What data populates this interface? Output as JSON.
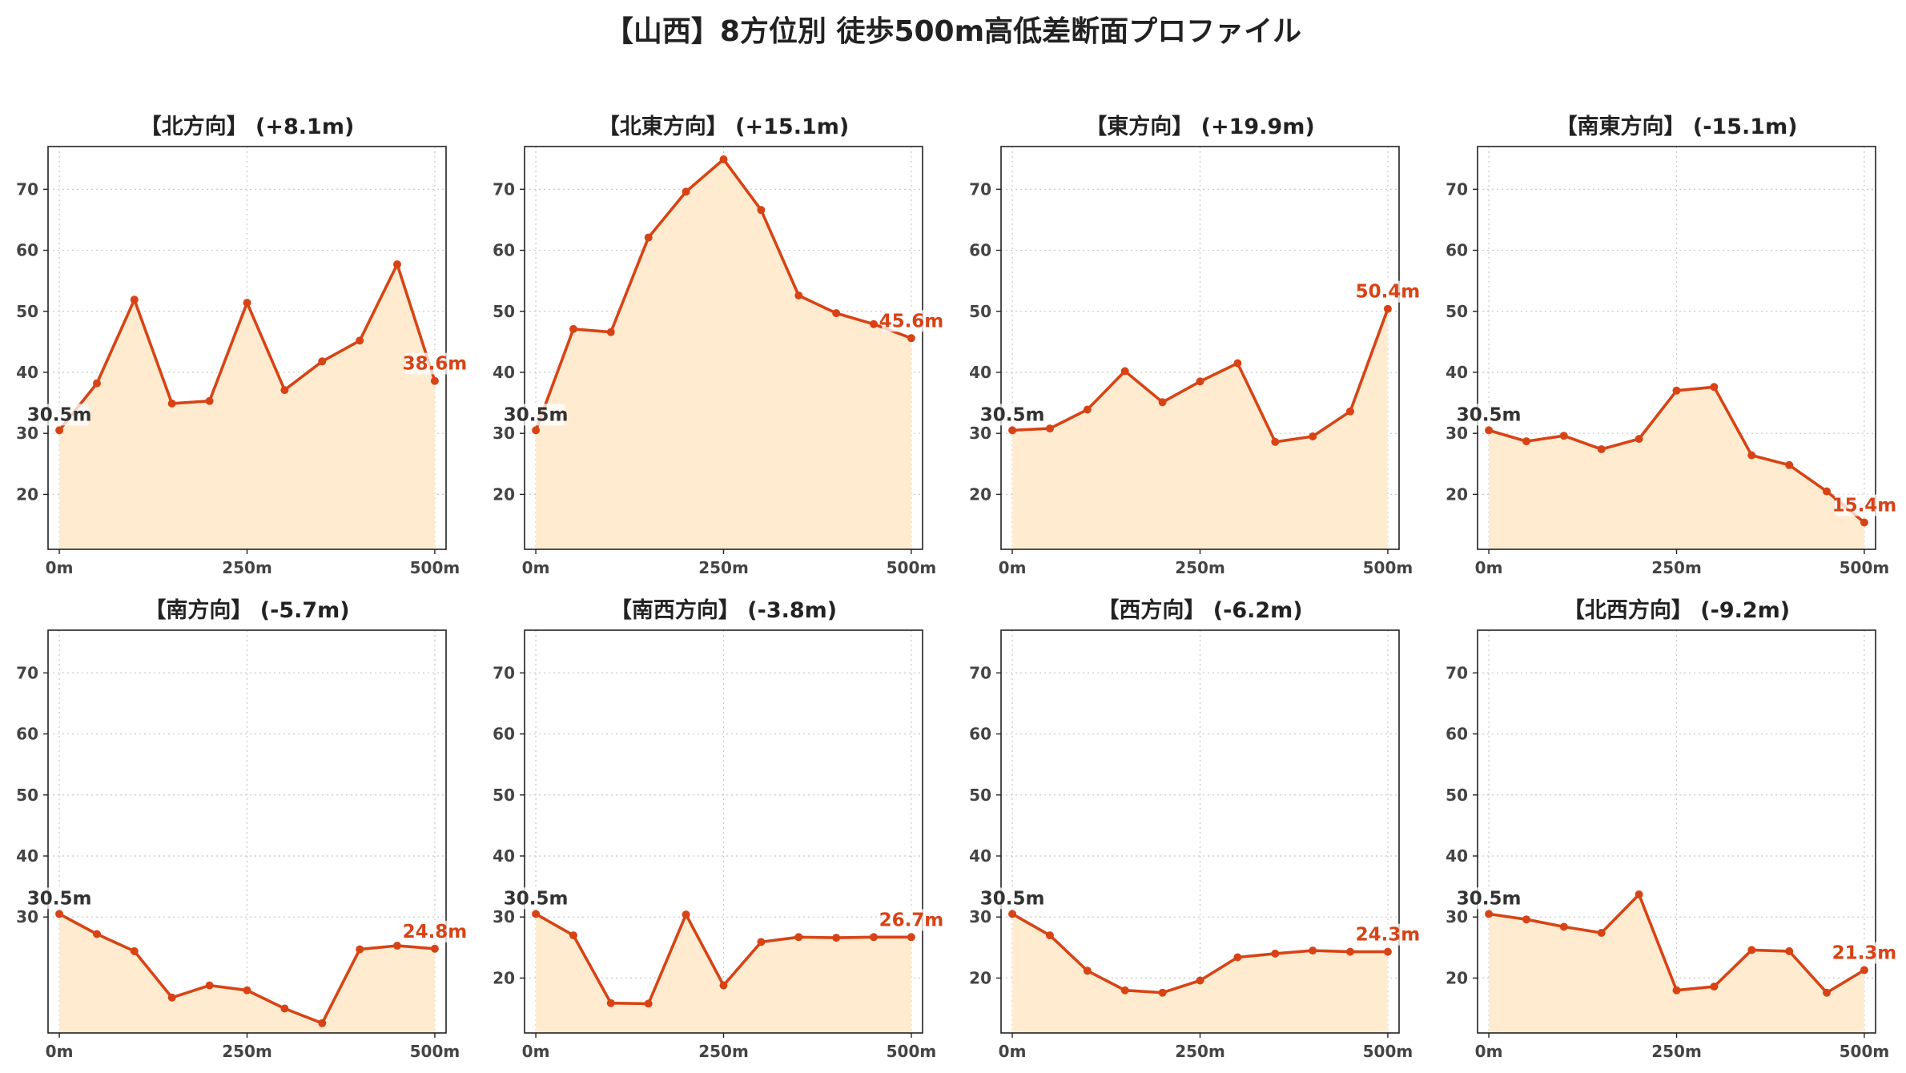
{
  "title": "【山西】8方位別 徒歩500m高低差断面プロファイル",
  "colors": {
    "line": "#d84315",
    "fill": "#ffecd0",
    "grid": "#c8c8c8",
    "start_label": "#333333",
    "end_label": "#d84315"
  },
  "chart_data": [
    {
      "type": "area",
      "title": "【北方向】 (+8.1m)",
      "x": [
        0,
        50,
        100,
        150,
        200,
        250,
        300,
        350,
        400,
        450,
        500
      ],
      "values": [
        30.5,
        38.2,
        51.9,
        34.9,
        35.3,
        51.4,
        37.1,
        41.8,
        45.2,
        57.7,
        38.6
      ],
      "start_label": "30.5m",
      "end_label": "38.6m",
      "xticks": [
        0,
        250,
        500
      ],
      "xtick_labels": [
        "0m",
        "250m",
        "500m"
      ],
      "yticks": [
        20,
        30,
        40,
        50,
        60,
        70
      ],
      "xlim": [
        -15,
        515
      ],
      "ylim": [
        11,
        77
      ],
      "grid": true
    },
    {
      "type": "area",
      "title": "【北東方向】 (+15.1m)",
      "x": [
        0,
        50,
        100,
        150,
        200,
        250,
        300,
        350,
        400,
        450,
        500
      ],
      "values": [
        30.5,
        47.1,
        46.6,
        62.1,
        69.6,
        74.9,
        66.6,
        52.6,
        49.7,
        47.9,
        45.6
      ],
      "start_label": "30.5m",
      "end_label": "45.6m",
      "xticks": [
        0,
        250,
        500
      ],
      "xtick_labels": [
        "0m",
        "250m",
        "500m"
      ],
      "yticks": [
        20,
        30,
        40,
        50,
        60,
        70
      ],
      "xlim": [
        -15,
        515
      ],
      "ylim": [
        11,
        77
      ],
      "grid": true
    },
    {
      "type": "area",
      "title": "【東方向】 (+19.9m)",
      "x": [
        0,
        50,
        100,
        150,
        200,
        250,
        300,
        350,
        400,
        450,
        500
      ],
      "values": [
        30.5,
        30.8,
        33.9,
        40.2,
        35.1,
        38.5,
        41.5,
        28.6,
        29.5,
        33.6,
        50.4
      ],
      "start_label": "30.5m",
      "end_label": "50.4m",
      "xticks": [
        0,
        250,
        500
      ],
      "xtick_labels": [
        "0m",
        "250m",
        "500m"
      ],
      "yticks": [
        20,
        30,
        40,
        50,
        60,
        70
      ],
      "xlim": [
        -15,
        515
      ],
      "ylim": [
        11,
        77
      ],
      "grid": true
    },
    {
      "type": "area",
      "title": "【南東方向】 (-15.1m)",
      "x": [
        0,
        50,
        100,
        150,
        200,
        250,
        300,
        350,
        400,
        450,
        500
      ],
      "values": [
        30.5,
        28.7,
        29.6,
        27.4,
        29.1,
        37.0,
        37.6,
        26.4,
        24.8,
        20.5,
        15.4
      ],
      "start_label": "30.5m",
      "end_label": "15.4m",
      "xticks": [
        0,
        250,
        500
      ],
      "xtick_labels": [
        "0m",
        "250m",
        "500m"
      ],
      "yticks": [
        20,
        30,
        40,
        50,
        60,
        70
      ],
      "xlim": [
        -15,
        515
      ],
      "ylim": [
        11,
        77
      ],
      "grid": true
    },
    {
      "type": "area",
      "title": "【南方向】 (-5.7m)",
      "x": [
        0,
        50,
        100,
        150,
        200,
        250,
        300,
        350,
        400,
        450,
        500
      ],
      "values": [
        30.5,
        27.2,
        24.4,
        16.8,
        18.8,
        18.0,
        15.0,
        12.6,
        24.7,
        25.3,
        24.8
      ],
      "start_label": "30.5m",
      "end_label": "24.8m",
      "xticks": [
        0,
        250,
        500
      ],
      "xtick_labels": [
        "0m",
        "250m",
        "500m"
      ],
      "yticks": [
        30,
        40,
        50,
        60,
        70
      ],
      "xlim": [
        -15,
        515
      ],
      "ylim": [
        11,
        77
      ],
      "grid": true
    },
    {
      "type": "area",
      "title": "【南西方向】 (-3.8m)",
      "x": [
        0,
        50,
        100,
        150,
        200,
        250,
        300,
        350,
        400,
        450,
        500
      ],
      "values": [
        30.5,
        27.0,
        15.9,
        15.8,
        30.4,
        18.8,
        25.9,
        26.7,
        26.6,
        26.7,
        26.7
      ],
      "start_label": "30.5m",
      "end_label": "26.7m",
      "xticks": [
        0,
        250,
        500
      ],
      "xtick_labels": [
        "0m",
        "250m",
        "500m"
      ],
      "yticks": [
        20,
        30,
        40,
        50,
        60,
        70
      ],
      "xlim": [
        -15,
        515
      ],
      "ylim": [
        11,
        77
      ],
      "grid": true
    },
    {
      "type": "area",
      "title": "【西方向】 (-6.2m)",
      "x": [
        0,
        50,
        100,
        150,
        200,
        250,
        300,
        350,
        400,
        450,
        500
      ],
      "values": [
        30.5,
        27.0,
        21.2,
        18.0,
        17.6,
        19.6,
        23.4,
        24.0,
        24.5,
        24.3,
        24.3
      ],
      "start_label": "30.5m",
      "end_label": "24.3m",
      "xticks": [
        0,
        250,
        500
      ],
      "xtick_labels": [
        "0m",
        "250m",
        "500m"
      ],
      "yticks": [
        20,
        30,
        40,
        50,
        60,
        70
      ],
      "xlim": [
        -15,
        515
      ],
      "ylim": [
        11,
        77
      ],
      "grid": true
    },
    {
      "type": "area",
      "title": "【北西方向】 (-9.2m)",
      "x": [
        0,
        50,
        100,
        150,
        200,
        250,
        300,
        350,
        400,
        450,
        500
      ],
      "values": [
        30.5,
        29.6,
        28.4,
        27.4,
        33.7,
        18.0,
        18.6,
        24.6,
        24.4,
        17.6,
        21.3
      ],
      "start_label": "30.5m",
      "end_label": "21.3m",
      "xticks": [
        0,
        250,
        500
      ],
      "xtick_labels": [
        "0m",
        "250m",
        "500m"
      ],
      "yticks": [
        20,
        30,
        40,
        50,
        60,
        70
      ],
      "xlim": [
        -15,
        515
      ],
      "ylim": [
        11,
        77
      ],
      "grid": true
    }
  ]
}
